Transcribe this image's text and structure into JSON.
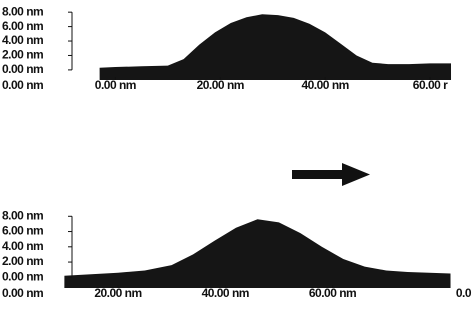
{
  "chart_data": [
    {
      "type": "area",
      "color": "#151515",
      "corner_label": "0.00 nm",
      "xlim": [
        -22,
        68
      ],
      "ylim": [
        -1.4,
        8.3
      ],
      "xticks": [
        {
          "value": 0,
          "label": "0.00 nm"
        },
        {
          "value": 20,
          "label": "20.00 nm"
        },
        {
          "value": 40,
          "label": "40.00 nm"
        },
        {
          "value": 60,
          "label": "60.00 r"
        }
      ],
      "yticks": [
        {
          "value": 0,
          "label": "0.00 nm"
        },
        {
          "value": 2,
          "label": "2.00 nm"
        },
        {
          "value": 4,
          "label": "4.00 nm"
        },
        {
          "value": 6,
          "label": "6.00 nm"
        },
        {
          "value": 8,
          "label": "8.00 nm"
        }
      ],
      "x": [
        -3,
        0,
        5,
        10,
        13,
        16,
        19,
        22,
        25,
        28,
        31,
        34,
        37,
        40,
        43,
        46,
        49,
        52,
        56,
        60,
        64
      ],
      "values": [
        0.3,
        0.4,
        0.5,
        0.6,
        1.5,
        3.5,
        5.2,
        6.5,
        7.3,
        7.7,
        7.6,
        7.2,
        6.4,
        5.2,
        3.6,
        2,
        1,
        0.8,
        0.8,
        0.9,
        0.9
      ]
    },
    {
      "type": "area",
      "color": "#151515",
      "corner_label": "0.00 nm",
      "edge_label": "0.0",
      "xlim": [
        -2,
        86
      ],
      "ylim": [
        -1.4,
        8.3
      ],
      "xticks": [
        {
          "value": 20,
          "label": "20.00 nm"
        },
        {
          "value": 40,
          "label": "40.00 nm"
        },
        {
          "value": 60,
          "label": "60.00 nm"
        }
      ],
      "yticks": [
        {
          "value": 0,
          "label": "0.00 nm"
        },
        {
          "value": 2,
          "label": "2.00 nm"
        },
        {
          "value": 4,
          "label": "4.00 nm"
        },
        {
          "value": 6,
          "label": "6.00 nm"
        },
        {
          "value": 8,
          "label": "8.00 nm"
        }
      ],
      "x": [
        10,
        15,
        20,
        25,
        30,
        34,
        38,
        42,
        46,
        50,
        54,
        58,
        62,
        66,
        70,
        74,
        78,
        82
      ],
      "values": [
        0.2,
        0.4,
        0.6,
        0.9,
        1.6,
        3,
        4.8,
        6.5,
        7.6,
        7.2,
        5.8,
        4,
        2.4,
        1.4,
        0.9,
        0.7,
        0.6,
        0.5
      ]
    }
  ]
}
